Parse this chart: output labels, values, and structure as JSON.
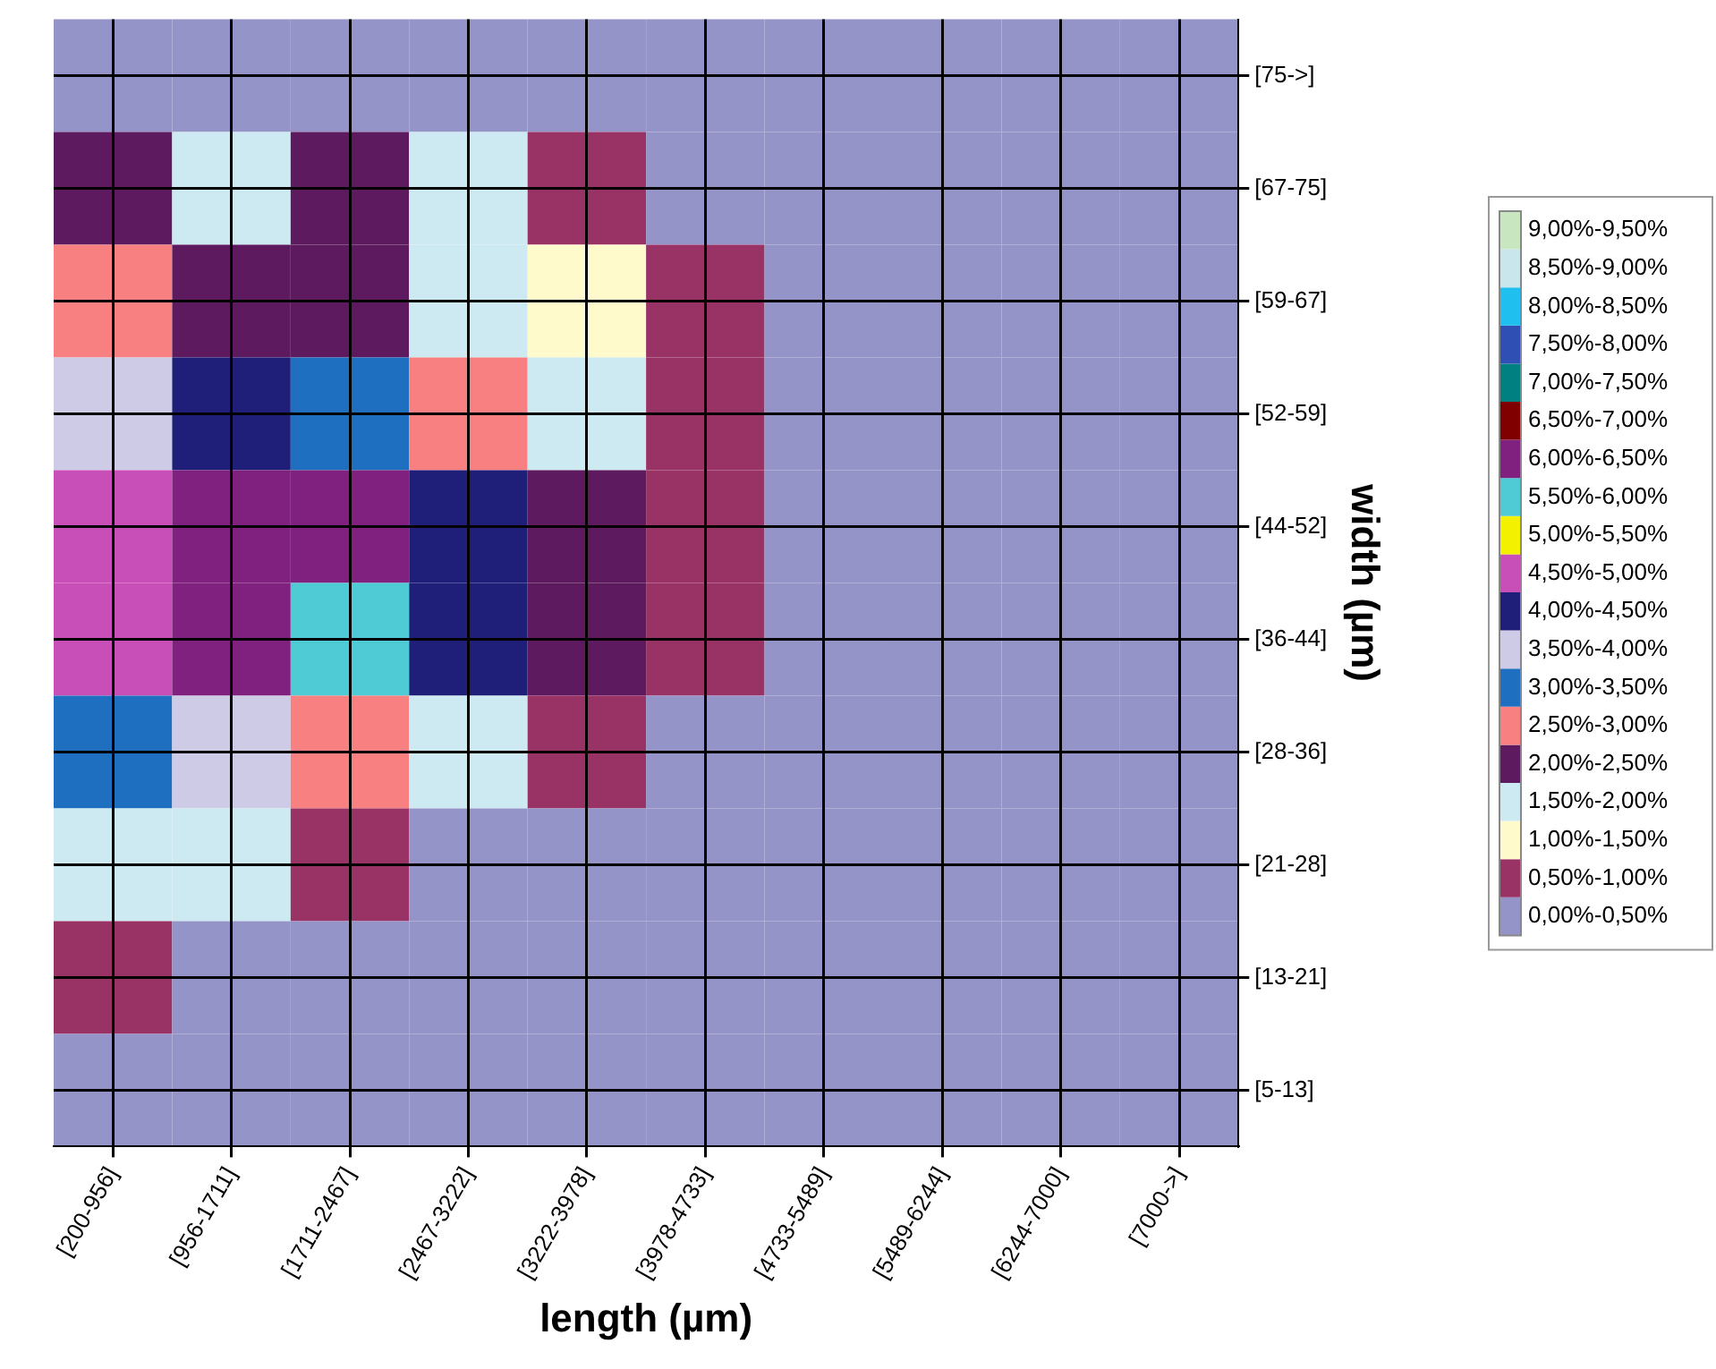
{
  "chart_data": {
    "type": "heatmap",
    "xlabel": "length (µm)",
    "ylabel": "width (µm)",
    "categories": [
      "[200-956]",
      "[956-1711]",
      "[1711-2467]",
      "[2467-3222]",
      "[3222-3978]",
      "[3978-4733]",
      "[4733-5489]",
      "[5489-6244]",
      "[6244-7000]",
      "[7000->]"
    ],
    "y_categories": [
      "[75->]",
      "[67-75]",
      "[59-67]",
      "[52-59]",
      "[44-52]",
      "[36-44]",
      "[28-36]",
      "[21-28]",
      "[13-21]",
      "[5-13]"
    ],
    "cells": [
      [
        0.3,
        0.35,
        0.3,
        0.25,
        0,
        0,
        0,
        0,
        0,
        0
      ],
      [
        2.0,
        1.8,
        2.1,
        1.5,
        0.8,
        0.2,
        0,
        0,
        0,
        0
      ],
      [
        2.5,
        2.3,
        2.0,
        1.5,
        1.2,
        0.6,
        0,
        0,
        0,
        0
      ],
      [
        3.7,
        4.0,
        3.0,
        2.5,
        1.7,
        0.8,
        0.3,
        0,
        0,
        0
      ],
      [
        4.7,
        6.2,
        6.1,
        4.2,
        2.3,
        0.9,
        0.2,
        0,
        0,
        0
      ],
      [
        4.7,
        6.0,
        5.8,
        4.3,
        2.0,
        0.9,
        0.3,
        0,
        0,
        0
      ],
      [
        3.2,
        3.5,
        2.5,
        1.6,
        0.6,
        0.2,
        0,
        0,
        0,
        0
      ],
      [
        1.5,
        1.5,
        0.6,
        0.3,
        0,
        0,
        0,
        0,
        0,
        0
      ],
      [
        0.8,
        0.4,
        0,
        0,
        0,
        0,
        0,
        0,
        0,
        0
      ],
      [
        0,
        0,
        0,
        0,
        0,
        0,
        0,
        0,
        0,
        0
      ]
    ],
    "clim": [
      0,
      9.5
    ],
    "cticks": [
      {
        "value": 0.25,
        "label": "0,00%-0,50%"
      },
      {
        "value": 0.75,
        "label": "0,50%-1,00%"
      },
      {
        "value": 1.25,
        "label": "1,00%-1,50%"
      },
      {
        "value": 1.75,
        "label": "1,50%-2,00%"
      },
      {
        "value": 2.25,
        "label": "2,00%-2,50%"
      },
      {
        "value": 2.75,
        "label": "2,50%-3,00%"
      },
      {
        "value": 3.25,
        "label": "3,00%-3,50%"
      },
      {
        "value": 3.75,
        "label": "3,50%-4,00%"
      },
      {
        "value": 4.25,
        "label": "4,00%-4,50%"
      },
      {
        "value": 4.75,
        "label": "4,50%-5,00%"
      },
      {
        "value": 5.25,
        "label": "5,00%-5,50%"
      },
      {
        "value": 5.75,
        "label": "5,50%-6,00%"
      },
      {
        "value": 6.25,
        "label": "6,00%-6,50%"
      },
      {
        "value": 6.75,
        "label": "6,50%-7,00%"
      },
      {
        "value": 7.25,
        "label": "7,00%-7,50%"
      },
      {
        "value": 7.75,
        "label": "7,50%-8,00%"
      },
      {
        "value": 8.25,
        "label": "8,00%-8,50%"
      },
      {
        "value": 8.75,
        "label": "8,50%-9,00%"
      },
      {
        "value": 9.25,
        "label": "9,00%-9,50%"
      }
    ],
    "colors": [
      "#9594c8",
      "#993366",
      "#fffacc",
      "#cdeaf2",
      "#5e1a5e",
      "#f88080",
      "#1f6fc0",
      "#cdcbe6",
      "#1f1f7a",
      "#c94fb8",
      "#f3f000",
      "#4ecbd4",
      "#80207f",
      "#800000",
      "#008080",
      "#2f4fb5",
      "#1fbff0",
      "#c8e6ec",
      "#c8e6c0"
    ],
    "grid": true
  }
}
